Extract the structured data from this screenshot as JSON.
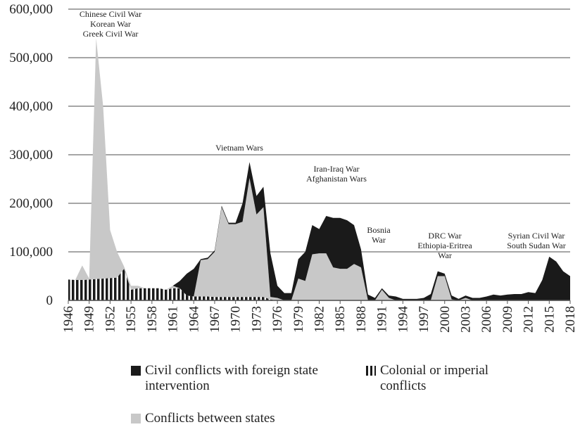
{
  "chart_data": {
    "type": "stacked-area",
    "x": [
      1946,
      1947,
      1948,
      1949,
      1950,
      1951,
      1952,
      1953,
      1954,
      1955,
      1956,
      1957,
      1958,
      1959,
      1960,
      1961,
      1962,
      1963,
      1964,
      1965,
      1966,
      1967,
      1968,
      1969,
      1970,
      1971,
      1972,
      1973,
      1974,
      1975,
      1976,
      1977,
      1978,
      1979,
      1980,
      1981,
      1982,
      1983,
      1984,
      1985,
      1986,
      1987,
      1988,
      1989,
      1990,
      1991,
      1992,
      1993,
      1994,
      1995,
      1996,
      1997,
      1998,
      1999,
      2000,
      2001,
      2002,
      2003,
      2004,
      2005,
      2006,
      2007,
      2008,
      2009,
      2010,
      2011,
      2012,
      2013,
      2014,
      2015,
      2016,
      2017,
      2018
    ],
    "xlim": [
      1946,
      2018
    ],
    "xticks": [
      1946,
      1949,
      1952,
      1955,
      1958,
      1961,
      1964,
      1967,
      1970,
      1973,
      1976,
      1979,
      1982,
      1985,
      1988,
      1991,
      1994,
      1997,
      2000,
      2003,
      2006,
      2009,
      2012,
      2015,
      2018
    ],
    "ylim": [
      0,
      600000
    ],
    "yticks": [
      0,
      {
        "value": 100000,
        "label": "100,000"
      },
      {
        "value": 200000,
        "label": "200,000"
      },
      {
        "value": 300000,
        "label": "300,000"
      },
      {
        "value": 400000,
        "label": "400,000"
      },
      {
        "value": 500000,
        "label": "500,000"
      },
      {
        "value": 600000,
        "label": "600,000"
      }
    ],
    "grid": true,
    "series": [
      {
        "name": "Colonial or imperial conflicts",
        "color": "#1a1a1a",
        "values": [
          43000,
          42000,
          42000,
          43000,
          44000,
          45000,
          46000,
          47000,
          65000,
          22000,
          25000,
          25000,
          25000,
          25000,
          22000,
          25000,
          25000,
          10000,
          8000,
          8000,
          8000,
          7000,
          7000,
          7000,
          7000,
          7000,
          7000,
          7000,
          7000,
          2000,
          0,
          0,
          0,
          0,
          0,
          0,
          0,
          0,
          0,
          0,
          0,
          0,
          0,
          0,
          0,
          0,
          0,
          0,
          0,
          0,
          0,
          0,
          0,
          0,
          0,
          0,
          0,
          0,
          0,
          0,
          0,
          0,
          0,
          0,
          0,
          0,
          0,
          0,
          0,
          0,
          0,
          0,
          0
        ]
      },
      {
        "name": "Conflicts between states",
        "color": "#c8c8c8",
        "values": [
          0,
          0,
          30000,
          2000,
          496000,
          355000,
          99000,
          53000,
          5000,
          8000,
          5000,
          0,
          0,
          0,
          0,
          5000,
          0,
          0,
          0,
          75000,
          77000,
          93000,
          185000,
          150000,
          150000,
          155000,
          245000,
          170000,
          185000,
          5000,
          5000,
          0,
          0,
          45000,
          40000,
          95000,
          97000,
          97000,
          68000,
          65000,
          65000,
          75000,
          68000,
          0,
          0,
          22000,
          5000,
          0,
          0,
          0,
          0,
          0,
          0,
          50000,
          50000,
          2000,
          0,
          5000,
          0,
          0,
          0,
          0,
          0,
          0,
          0,
          0,
          0,
          0,
          0,
          0,
          0,
          0,
          0
        ]
      },
      {
        "name": "Civil conflicts with foreign state intervention",
        "color": "#1a1a1a",
        "values": [
          0,
          0,
          0,
          0,
          0,
          0,
          0,
          0,
          0,
          0,
          0,
          0,
          0,
          0,
          0,
          0,
          15000,
          45000,
          57000,
          2000,
          3000,
          3000,
          3000,
          3000,
          3000,
          38000,
          33000,
          38000,
          42000,
          90000,
          25000,
          15000,
          15000,
          40000,
          60000,
          60000,
          50000,
          77000,
          102000,
          105000,
          100000,
          80000,
          37000,
          12000,
          5000,
          3000,
          5000,
          8000,
          3000,
          3000,
          3000,
          5000,
          13000,
          10000,
          5000,
          8000,
          3000,
          5000,
          5000,
          5000,
          8000,
          12000,
          10000,
          12000,
          13000,
          13000,
          17000,
          15000,
          42000,
          90000,
          80000,
          60000,
          50000
        ]
      }
    ],
    "annotations": [
      {
        "lines": [
          "Chinese Civil War",
          "Korean War",
          "Greek Civil War"
        ]
      },
      {
        "lines": [
          "Vietnam Wars"
        ]
      },
      {
        "lines": [
          "Iran-Iraq War",
          "Afghanistan Wars"
        ]
      },
      {
        "lines": [
          "Bosnia",
          "War"
        ]
      },
      {
        "lines": [
          "DRC War",
          "Ethiopia-Eritrea",
          "War"
        ]
      },
      {
        "lines": [
          "Syrian Civil War",
          "South Sudan War"
        ]
      }
    ]
  }
}
